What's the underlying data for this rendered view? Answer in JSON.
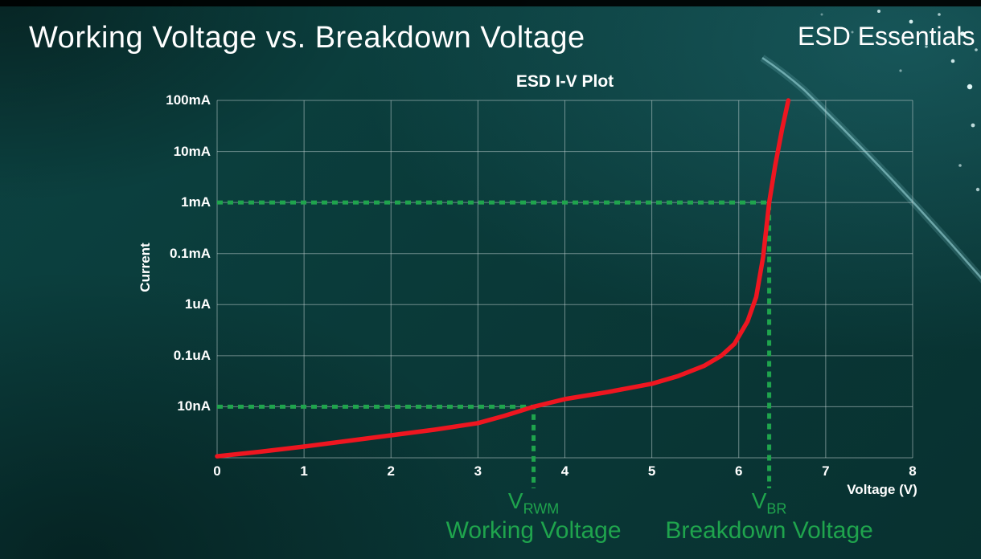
{
  "page": {
    "title": "Working Voltage vs. Breakdown Voltage",
    "brand": "ESD Essentials"
  },
  "colors": {
    "background": "#0a3a39",
    "grid": "#c2d2d2",
    "curve_red": "#ee1620",
    "annotation_green": "#1fa44d",
    "text_white": "#ffffff"
  },
  "chart_data": {
    "type": "line",
    "title": "ESD I-V Plot",
    "xlabel": "Voltage (V)",
    "ylabel": "Current",
    "x_ticks": [
      "0",
      "1",
      "2",
      "3",
      "4",
      "5",
      "6",
      "7",
      "8"
    ],
    "xlim": [
      0,
      8
    ],
    "y_ticks_top_to_bottom": [
      "100mA",
      "10mA",
      "1mA",
      "0.1mA",
      "1uA",
      "0.1uA",
      "10nA"
    ],
    "y_scale_note": "log-style current axis; one gridline per labeled tick, bottom gridline unlabeled",
    "grid": true,
    "legend": "none",
    "series": [
      {
        "name": "ESD device I-V curve",
        "color": "#ee1620",
        "points_v_vs_logrow": [
          [
            0,
            0.03
          ],
          [
            0.5,
            0.12
          ],
          [
            1,
            0.22
          ],
          [
            1.5,
            0.33
          ],
          [
            2,
            0.44
          ],
          [
            2.5,
            0.55
          ],
          [
            3,
            0.68
          ],
          [
            3.3,
            0.82
          ],
          [
            3.64,
            1.0
          ],
          [
            4,
            1.15
          ],
          [
            4.5,
            1.29
          ],
          [
            5,
            1.45
          ],
          [
            5.3,
            1.6
          ],
          [
            5.6,
            1.8
          ],
          [
            5.8,
            2.0
          ],
          [
            5.95,
            2.23
          ],
          [
            6.1,
            2.67
          ],
          [
            6.2,
            3.15
          ],
          [
            6.28,
            3.93
          ],
          [
            6.35,
            5.0
          ],
          [
            6.42,
            5.74
          ],
          [
            6.5,
            6.45
          ],
          [
            6.57,
            7.0
          ]
        ]
      }
    ],
    "annotations": [
      {
        "symbol": "V",
        "sub": "RWM",
        "caption": "Working Voltage",
        "voltage": 3.64,
        "current": "10nA"
      },
      {
        "symbol": "V",
        "sub": "BR",
        "caption": "Breakdown Voltage",
        "voltage": 6.35,
        "current": "1mA"
      }
    ]
  }
}
